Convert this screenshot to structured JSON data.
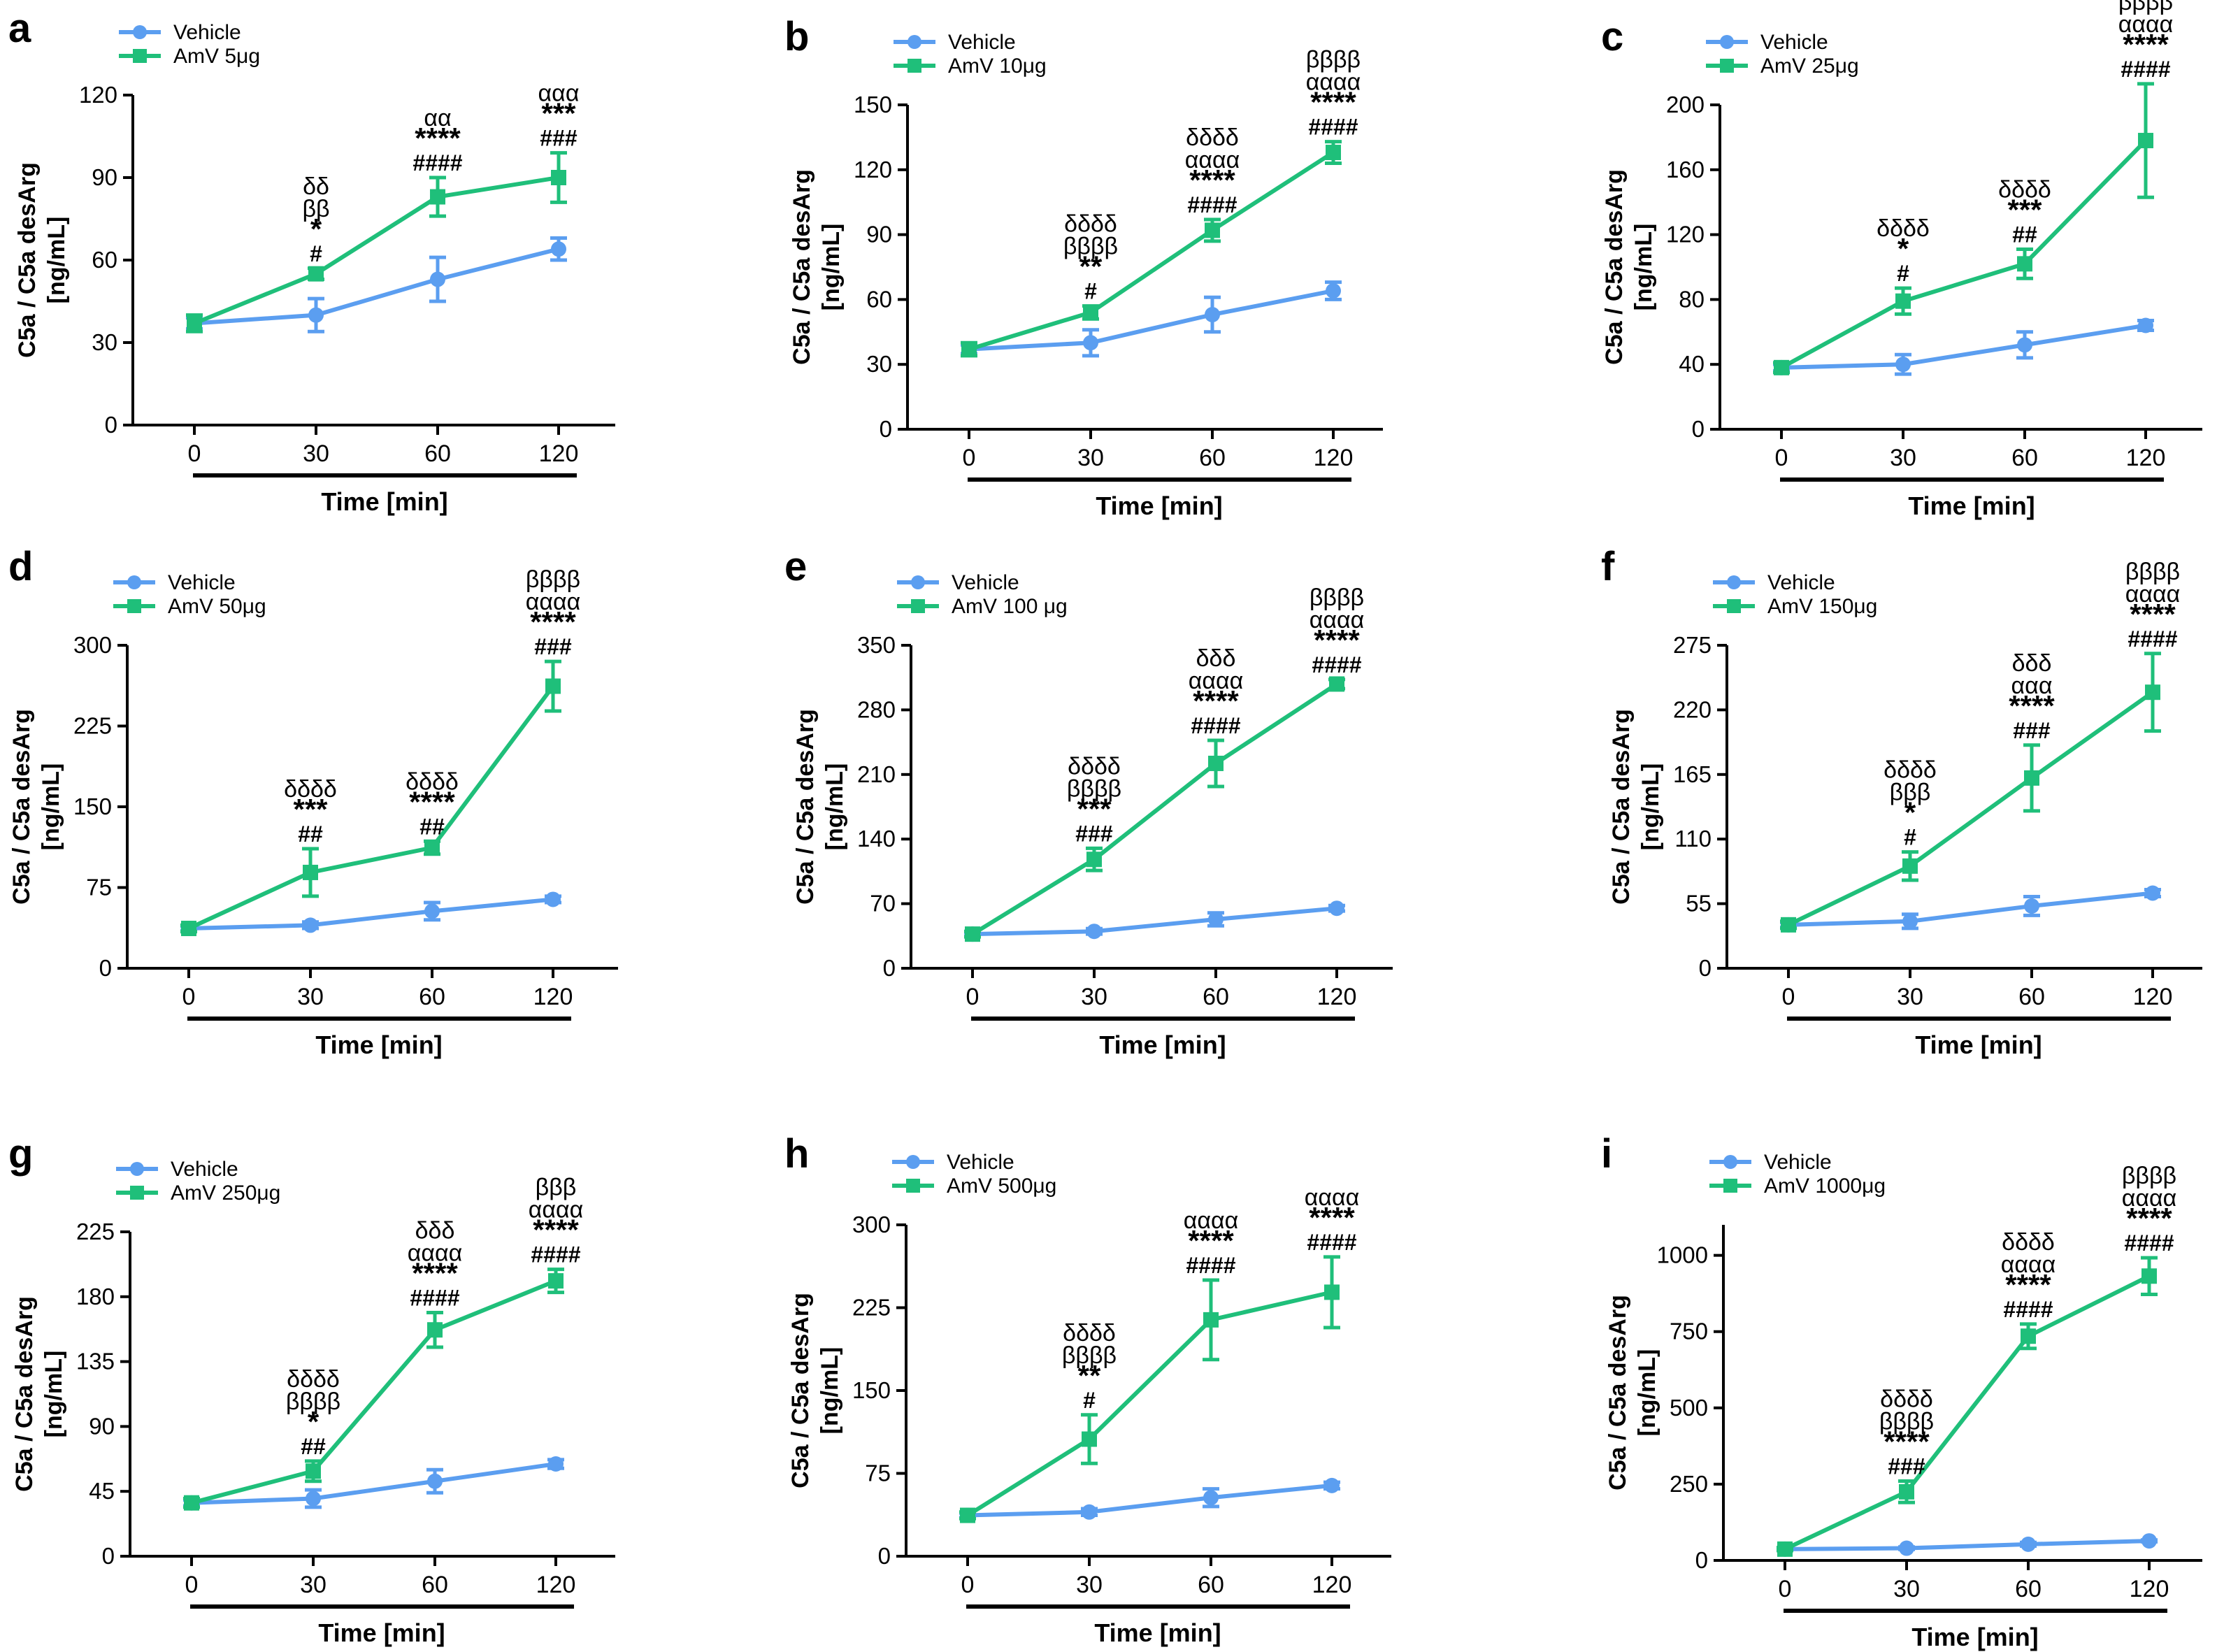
{
  "colors": {
    "vehicle": "#5b9ef0",
    "amv": "#1fbf7a",
    "axis": "#000000"
  },
  "x_label": "Time [min]",
  "y_label_line1": "C5a / C5a desArg",
  "y_label_line2": "[ng/mL]",
  "chart_data": [
    {
      "type": "line",
      "panel": "a",
      "title": "",
      "categories": [
        "0",
        "30",
        "60",
        "120"
      ],
      "xlabel": "Time [min]",
      "ylabel": "C5a / C5a desArg [ng/mL]",
      "ylim": [
        0,
        120
      ],
      "yticks": [
        "0",
        "30",
        "60",
        "90",
        "120"
      ],
      "series": [
        {
          "name": "Vehicle",
          "values": [
            37,
            40,
            53,
            64
          ],
          "errors": [
            2,
            6,
            8,
            4
          ]
        },
        {
          "name": "AmV 5μg",
          "values": [
            37,
            55,
            83,
            90
          ],
          "errors": [
            3,
            2,
            7,
            9
          ]
        }
      ],
      "annotations": [
        {
          "category": "30",
          "lines": [
            "δδ",
            "ββ",
            "*",
            "#"
          ]
        },
        {
          "category": "60",
          "lines": [
            "αα",
            "****",
            "####"
          ]
        },
        {
          "category": "120",
          "lines": [
            "ααα",
            "***",
            "###"
          ]
        }
      ]
    },
    {
      "type": "line",
      "panel": "b",
      "title": "",
      "categories": [
        "0",
        "30",
        "60",
        "120"
      ],
      "xlabel": "Time [min]",
      "ylabel": "C5a / C5a desArg [ng/mL]",
      "ylim": [
        0,
        150
      ],
      "yticks": [
        "0",
        "30",
        "60",
        "90",
        "120",
        "150"
      ],
      "series": [
        {
          "name": "Vehicle",
          "values": [
            37,
            40,
            53,
            64
          ],
          "errors": [
            2,
            6,
            8,
            4
          ]
        },
        {
          "name": "AmV 10μg",
          "values": [
            37,
            54,
            92,
            128
          ],
          "errors": [
            3,
            3,
            5,
            5
          ]
        }
      ],
      "annotations": [
        {
          "category": "30",
          "lines": [
            "δδδδ",
            "ββββ",
            "**",
            "#"
          ]
        },
        {
          "category": "60",
          "lines": [
            "δδδδ",
            "αααα",
            "****",
            "####"
          ]
        },
        {
          "category": "120",
          "lines": [
            "ββββ",
            "αααα",
            "****",
            "####"
          ]
        }
      ]
    },
    {
      "type": "line",
      "panel": "c",
      "title": "",
      "categories": [
        "0",
        "30",
        "60",
        "120"
      ],
      "xlabel": "Time [min]",
      "ylabel": "C5a / C5a desArg [ng/mL]",
      "ylim": [
        0,
        200
      ],
      "yticks": [
        "0",
        "40",
        "80",
        "120",
        "160",
        "200"
      ],
      "series": [
        {
          "name": "Vehicle",
          "values": [
            38,
            40,
            52,
            64
          ],
          "errors": [
            2,
            6,
            8,
            3
          ]
        },
        {
          "name": "AmV 25μg",
          "values": [
            38,
            79,
            102,
            178
          ],
          "errors": [
            3,
            8,
            9,
            35
          ]
        }
      ],
      "annotations": [
        {
          "category": "30",
          "lines": [
            "δδδδ",
            "*",
            "#"
          ]
        },
        {
          "category": "60",
          "lines": [
            "δδδδ",
            "***",
            "##"
          ]
        },
        {
          "category": "120",
          "lines": [
            "ββββ",
            "αααα",
            "****",
            "####"
          ]
        }
      ]
    },
    {
      "type": "line",
      "panel": "d",
      "title": "",
      "categories": [
        "0",
        "30",
        "60",
        "120"
      ],
      "xlabel": "Time [min]",
      "ylabel": "C5a / C5a desArg [ng/mL]",
      "ylim": [
        0,
        300
      ],
      "yticks": [
        "0",
        "75",
        "150",
        "225",
        "300"
      ],
      "series": [
        {
          "name": "Vehicle",
          "values": [
            37,
            40,
            53,
            64
          ],
          "errors": [
            2,
            3,
            8,
            3
          ]
        },
        {
          "name": "AmV 50μg",
          "values": [
            37,
            89,
            112,
            262
          ],
          "errors": [
            3,
            22,
            6,
            23
          ]
        }
      ],
      "annotations": [
        {
          "category": "30",
          "lines": [
            "δδδδ",
            "***",
            "##"
          ]
        },
        {
          "category": "60",
          "lines": [
            "δδδδ",
            "****",
            "##"
          ]
        },
        {
          "category": "120",
          "lines": [
            "ββββ",
            "αααα",
            "****",
            "###"
          ]
        }
      ]
    },
    {
      "type": "line",
      "panel": "e",
      "title": "",
      "categories": [
        "0",
        "30",
        "60",
        "120"
      ],
      "xlabel": "Time [min]",
      "ylabel": "C5a / C5a desArg [ng/mL]",
      "ylim": [
        0,
        350
      ],
      "yticks": [
        "0",
        "70",
        "140",
        "210",
        "280",
        "350"
      ],
      "series": [
        {
          "name": "Vehicle",
          "values": [
            37,
            40,
            53,
            65
          ],
          "errors": [
            2,
            3,
            7,
            3
          ]
        },
        {
          "name": "AmV 100 μg",
          "values": [
            37,
            118,
            222,
            308
          ],
          "errors": [
            3,
            12,
            25,
            5
          ]
        }
      ],
      "annotations": [
        {
          "category": "30",
          "lines": [
            "δδδδ",
            "ββββ",
            "***",
            "###"
          ]
        },
        {
          "category": "60",
          "lines": [
            "δδδ",
            "αααα",
            "****",
            "####"
          ]
        },
        {
          "category": "120",
          "lines": [
            "ββββ",
            "αααα",
            "****",
            "####"
          ]
        }
      ]
    },
    {
      "type": "line",
      "panel": "f",
      "title": "",
      "categories": [
        "0",
        "30",
        "60",
        "120"
      ],
      "xlabel": "Time [min]",
      "ylabel": "C5a / C5a desArg [ng/mL]",
      "ylim": [
        0,
        275
      ],
      "yticks": [
        "0",
        "55",
        "110",
        "165",
        "220",
        "275"
      ],
      "series": [
        {
          "name": "Vehicle",
          "values": [
            37,
            40,
            53,
            64
          ],
          "errors": [
            2,
            6,
            8,
            3
          ]
        },
        {
          "name": "AmV 150μg",
          "values": [
            37,
            87,
            162,
            235
          ],
          "errors": [
            3,
            12,
            28,
            33
          ]
        }
      ],
      "annotations": [
        {
          "category": "30",
          "lines": [
            "δδδδ",
            "βββ",
            "*",
            "#"
          ]
        },
        {
          "category": "60",
          "lines": [
            "δδδ",
            "ααα",
            "****",
            "###"
          ]
        },
        {
          "category": "120",
          "lines": [
            "ββββ",
            "αααα",
            "****",
            "####"
          ]
        }
      ]
    },
    {
      "type": "line",
      "panel": "g",
      "title": "",
      "categories": [
        "0",
        "30",
        "60",
        "120"
      ],
      "xlabel": "Time [min]",
      "ylabel": "C5a / C5a desArg [ng/mL]",
      "ylim": [
        0,
        225
      ],
      "yticks": [
        "0",
        "45",
        "90",
        "135",
        "180",
        "225"
      ],
      "series": [
        {
          "name": "Vehicle",
          "values": [
            37,
            40,
            52,
            64
          ],
          "errors": [
            2,
            6,
            8,
            3
          ]
        },
        {
          "name": "AmV 250μg",
          "values": [
            37,
            59,
            157,
            191
          ],
          "errors": [
            3,
            7,
            12,
            8
          ]
        }
      ],
      "annotations": [
        {
          "category": "30",
          "lines": [
            "δδδδ",
            "ββββ",
            "*",
            "##"
          ]
        },
        {
          "category": "60",
          "lines": [
            "δδδ",
            "αααα",
            "****",
            "####"
          ]
        },
        {
          "category": "120",
          "lines": [
            "βββ",
            "αααα",
            "****",
            "####"
          ]
        }
      ]
    },
    {
      "type": "line",
      "panel": "h",
      "title": "",
      "categories": [
        "0",
        "30",
        "60",
        "120"
      ],
      "xlabel": "Time [min]",
      "ylabel": "C5a / C5a desArg [ng/mL]",
      "ylim": [
        0,
        300
      ],
      "yticks": [
        "0",
        "75",
        "150",
        "225",
        "300"
      ],
      "series": [
        {
          "name": "Vehicle",
          "values": [
            37,
            40,
            53,
            64
          ],
          "errors": [
            2,
            3,
            8,
            3
          ]
        },
        {
          "name": "AmV 500μg",
          "values": [
            37,
            106,
            214,
            239
          ],
          "errors": [
            3,
            22,
            36,
            32
          ]
        }
      ],
      "annotations": [
        {
          "category": "30",
          "lines": [
            "δδδδ",
            "ββββ",
            "**",
            "#"
          ]
        },
        {
          "category": "60",
          "lines": [
            "αααα",
            "****",
            "####"
          ]
        },
        {
          "category": "120",
          "lines": [
            "αααα",
            "****",
            "####"
          ]
        }
      ]
    },
    {
      "type": "line",
      "panel": "i",
      "title": "",
      "categories": [
        "0",
        "30",
        "60",
        "120"
      ],
      "xlabel": "Time [min]",
      "ylabel": "C5a / C5a desArg [ng/mL]",
      "ylim": [
        0,
        1100
      ],
      "yticks": [
        "0",
        "250",
        "500",
        "750",
        "1000"
      ],
      "series": [
        {
          "name": "Vehicle",
          "values": [
            37,
            40,
            53,
            64
          ],
          "errors": [
            2,
            4,
            6,
            3
          ]
        },
        {
          "name": "AmV 1000μg",
          "values": [
            37,
            225,
            735,
            932
          ],
          "errors": [
            5,
            35,
            40,
            60
          ]
        }
      ],
      "annotations": [
        {
          "category": "30",
          "lines": [
            "δδδδ",
            "ββββ",
            "****",
            "###"
          ]
        },
        {
          "category": "60",
          "lines": [
            "δδδδ",
            "αααα",
            "****",
            "####"
          ]
        },
        {
          "category": "120",
          "lines": [
            "ββββ",
            "αααα",
            "****",
            "####"
          ]
        }
      ]
    }
  ]
}
